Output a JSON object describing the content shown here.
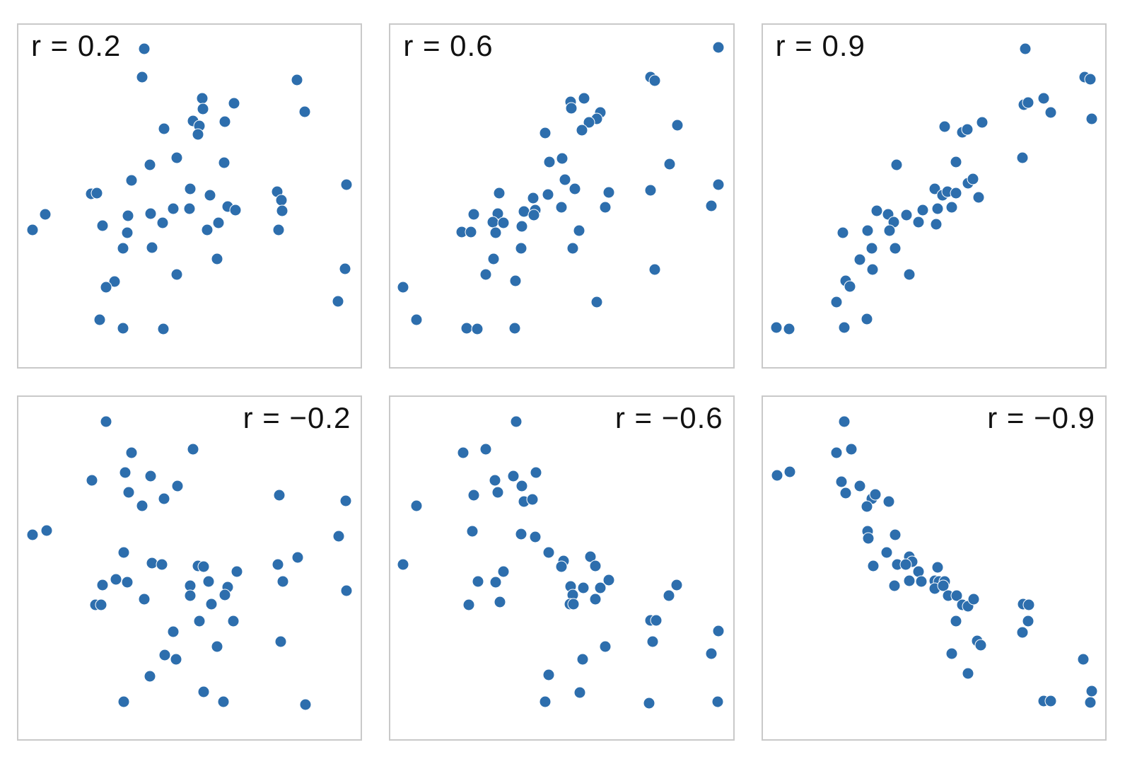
{
  "figure": {
    "description": "Six scatter plots illustrating different Pearson correlation coefficients"
  },
  "chart_data": {
    "type": "scatter",
    "layout": {
      "rows": 2,
      "cols": 3,
      "grid": false,
      "axes_visible": false,
      "tick_labels": false
    },
    "style": {
      "dot_color": "#2d6ead",
      "dot_edge_color": "#ffffff",
      "panel_border_color": "#c9c9c9",
      "label_color": "#111111",
      "background": "#ffffff"
    },
    "points_units": "percent of panel area; x from left edge, y from top edge",
    "panels": [
      {
        "label": "r = 0.2",
        "r": 0.2,
        "label_position": "top-left",
        "points": [
          [
            36.7,
            7.0
          ],
          [
            36.1,
            15.2
          ],
          [
            81.4,
            16.2
          ],
          [
            53.7,
            21.5
          ],
          [
            62.9,
            23.0
          ],
          [
            53.9,
            24.6
          ],
          [
            83.6,
            25.4
          ],
          [
            51.0,
            28.1
          ],
          [
            60.2,
            28.3
          ],
          [
            52.8,
            29.5
          ],
          [
            42.6,
            30.3
          ],
          [
            52.5,
            32.0
          ],
          [
            46.3,
            38.9
          ],
          [
            60.0,
            40.2
          ],
          [
            38.4,
            41.0
          ],
          [
            33.0,
            45.5
          ],
          [
            21.2,
            49.4
          ],
          [
            23.0,
            49.2
          ],
          [
            50.2,
            48.0
          ],
          [
            56.0,
            49.8
          ],
          [
            75.5,
            48.8
          ],
          [
            76.9,
            51.2
          ],
          [
            95.9,
            46.7
          ],
          [
            45.3,
            53.7
          ],
          [
            50.0,
            53.7
          ],
          [
            61.2,
            53.1
          ],
          [
            63.4,
            54.1
          ],
          [
            7.8,
            55.3
          ],
          [
            32.1,
            55.7
          ],
          [
            38.6,
            55.1
          ],
          [
            77.1,
            54.3
          ],
          [
            42.1,
            57.8
          ],
          [
            58.4,
            57.8
          ],
          [
            4.1,
            60.0
          ],
          [
            24.5,
            58.6
          ],
          [
            31.7,
            60.7
          ],
          [
            55.1,
            60.0
          ],
          [
            76.0,
            60.0
          ],
          [
            30.6,
            65.2
          ],
          [
            39.0,
            65.0
          ],
          [
            58.0,
            68.4
          ],
          [
            46.3,
            73.0
          ],
          [
            95.3,
            71.3
          ],
          [
            28.0,
            75.0
          ],
          [
            25.5,
            76.6
          ],
          [
            93.3,
            80.7
          ],
          [
            23.7,
            86.1
          ],
          [
            30.6,
            88.7
          ],
          [
            42.3,
            88.9
          ]
        ]
      },
      {
        "label": "r = 0.6",
        "r": 0.6,
        "label_position": "top-left",
        "points": [
          [
            95.7,
            6.6
          ],
          [
            76.0,
            15.2
          ],
          [
            77.2,
            16.4
          ],
          [
            52.6,
            22.5
          ],
          [
            52.8,
            24.4
          ],
          [
            56.5,
            21.5
          ],
          [
            61.2,
            25.6
          ],
          [
            60.2,
            27.5
          ],
          [
            57.9,
            28.5
          ],
          [
            55.9,
            30.7
          ],
          [
            45.2,
            31.6
          ],
          [
            83.8,
            29.3
          ],
          [
            46.4,
            40.0
          ],
          [
            50.1,
            39.1
          ],
          [
            81.5,
            40.8
          ],
          [
            50.9,
            45.3
          ],
          [
            53.8,
            48.0
          ],
          [
            31.8,
            49.2
          ],
          [
            41.6,
            50.6
          ],
          [
            46.0,
            49.6
          ],
          [
            63.7,
            49.0
          ],
          [
            76.0,
            48.4
          ],
          [
            95.7,
            46.7
          ],
          [
            62.6,
            53.3
          ],
          [
            49.9,
            53.3
          ],
          [
            93.6,
            52.9
          ],
          [
            39.0,
            54.5
          ],
          [
            42.3,
            54.1
          ],
          [
            41.8,
            55.5
          ],
          [
            24.2,
            55.3
          ],
          [
            31.4,
            55.1
          ],
          [
            29.9,
            57.6
          ],
          [
            32.9,
            57.8
          ],
          [
            30.6,
            60.7
          ],
          [
            38.4,
            58.8
          ],
          [
            20.8,
            60.5
          ],
          [
            23.4,
            60.5
          ],
          [
            55.0,
            60.2
          ],
          [
            38.2,
            65.2
          ],
          [
            53.3,
            65.2
          ],
          [
            30.1,
            68.4
          ],
          [
            77.2,
            71.5
          ],
          [
            27.9,
            73.0
          ],
          [
            36.4,
            74.8
          ],
          [
            3.7,
            76.6
          ],
          [
            60.2,
            80.9
          ],
          [
            7.6,
            86.1
          ],
          [
            22.3,
            88.7
          ],
          [
            25.3,
            88.9
          ],
          [
            36.2,
            88.7
          ]
        ]
      },
      {
        "label": "r = 0.9",
        "r": 0.9,
        "label_position": "top-left",
        "points": [
          [
            76.6,
            7.0
          ],
          [
            94.1,
            15.2
          ],
          [
            95.7,
            16.0
          ],
          [
            76.2,
            23.4
          ],
          [
            77.5,
            22.7
          ],
          [
            82.0,
            21.5
          ],
          [
            84.0,
            25.6
          ],
          [
            53.1,
            29.7
          ],
          [
            58.2,
            31.4
          ],
          [
            59.8,
            30.5
          ],
          [
            64.1,
            28.5
          ],
          [
            96.1,
            27.5
          ],
          [
            75.8,
            38.9
          ],
          [
            39.1,
            41.0
          ],
          [
            56.4,
            40.0
          ],
          [
            60.0,
            46.3
          ],
          [
            61.3,
            45.1
          ],
          [
            50.2,
            48.0
          ],
          [
            52.5,
            49.8
          ],
          [
            53.9,
            48.8
          ],
          [
            56.4,
            49.2
          ],
          [
            63.1,
            50.4
          ],
          [
            55.1,
            53.3
          ],
          [
            46.7,
            54.1
          ],
          [
            51.0,
            53.7
          ],
          [
            33.4,
            54.3
          ],
          [
            36.7,
            55.3
          ],
          [
            42.0,
            55.5
          ],
          [
            38.3,
            57.6
          ],
          [
            45.5,
            57.6
          ],
          [
            50.6,
            58.2
          ],
          [
            37.1,
            60.2
          ],
          [
            30.7,
            60.2
          ],
          [
            23.4,
            60.7
          ],
          [
            31.8,
            65.2
          ],
          [
            38.7,
            65.2
          ],
          [
            28.3,
            68.6
          ],
          [
            32.0,
            71.5
          ],
          [
            42.8,
            73.0
          ],
          [
            24.2,
            74.8
          ],
          [
            25.4,
            76.4
          ],
          [
            21.5,
            80.9
          ],
          [
            30.5,
            85.9
          ],
          [
            23.8,
            88.5
          ],
          [
            3.9,
            88.5
          ],
          [
            7.8,
            88.9
          ]
        ]
      },
      {
        "label": "r = −0.2",
        "r": -0.2,
        "label_position": "top-right",
        "points": [
          [
            25.7,
            7.2
          ],
          [
            33.1,
            16.4
          ],
          [
            51.1,
            15.2
          ],
          [
            31.1,
            22.1
          ],
          [
            38.7,
            23.2
          ],
          [
            21.5,
            24.4
          ],
          [
            46.4,
            26.0
          ],
          [
            32.3,
            27.9
          ],
          [
            42.5,
            29.7
          ],
          [
            36.2,
            31.8
          ],
          [
            76.1,
            28.7
          ],
          [
            95.5,
            30.3
          ],
          [
            4.1,
            40.2
          ],
          [
            8.2,
            39.1
          ],
          [
            93.6,
            40.8
          ],
          [
            30.7,
            45.5
          ],
          [
            39.1,
            48.6
          ],
          [
            42.0,
            49.0
          ],
          [
            52.4,
            49.4
          ],
          [
            54.0,
            49.6
          ],
          [
            75.7,
            49.0
          ],
          [
            81.6,
            46.9
          ],
          [
            63.8,
            51.0
          ],
          [
            24.6,
            54.9
          ],
          [
            28.5,
            53.3
          ],
          [
            31.7,
            54.1
          ],
          [
            77.3,
            53.9
          ],
          [
            95.7,
            56.6
          ],
          [
            50.1,
            55.1
          ],
          [
            55.5,
            53.9
          ],
          [
            61.1,
            55.5
          ],
          [
            50.1,
            58.0
          ],
          [
            60.3,
            57.8
          ],
          [
            36.8,
            59.0
          ],
          [
            56.4,
            60.5
          ],
          [
            22.5,
            60.7
          ],
          [
            24.1,
            60.7
          ],
          [
            52.9,
            65.4
          ],
          [
            62.8,
            65.4
          ],
          [
            45.2,
            68.6
          ],
          [
            76.6,
            71.5
          ],
          [
            58.1,
            73.0
          ],
          [
            42.7,
            75.4
          ],
          [
            46.0,
            76.6
          ],
          [
            38.5,
            81.6
          ],
          [
            54.0,
            86.1
          ],
          [
            30.7,
            89.1
          ],
          [
            59.9,
            89.1
          ],
          [
            83.8,
            89.8
          ]
        ]
      },
      {
        "label": "r = −0.6",
        "r": -0.6,
        "label_position": "top-right",
        "points": [
          [
            36.6,
            7.2
          ],
          [
            21.2,
            16.4
          ],
          [
            27.9,
            15.2
          ],
          [
            42.5,
            22.1
          ],
          [
            35.9,
            23.2
          ],
          [
            30.4,
            24.4
          ],
          [
            38.4,
            26.0
          ],
          [
            31.4,
            27.9
          ],
          [
            24.2,
            28.7
          ],
          [
            39.0,
            30.5
          ],
          [
            41.4,
            29.9
          ],
          [
            7.6,
            31.8
          ],
          [
            23.8,
            39.3
          ],
          [
            38.2,
            40.0
          ],
          [
            42.3,
            41.0
          ],
          [
            46.2,
            45.5
          ],
          [
            50.5,
            48.0
          ],
          [
            49.9,
            49.6
          ],
          [
            3.7,
            49.0
          ],
          [
            58.3,
            46.7
          ],
          [
            59.8,
            49.4
          ],
          [
            32.9,
            51.0
          ],
          [
            25.6,
            53.9
          ],
          [
            30.6,
            54.1
          ],
          [
            63.7,
            53.5
          ],
          [
            52.6,
            55.3
          ],
          [
            56.3,
            55.7
          ],
          [
            61.3,
            55.7
          ],
          [
            53.3,
            57.8
          ],
          [
            59.8,
            59.0
          ],
          [
            52.4,
            60.5
          ],
          [
            53.5,
            60.5
          ],
          [
            22.8,
            60.7
          ],
          [
            32.0,
            60.0
          ],
          [
            83.6,
            54.9
          ],
          [
            81.3,
            58.0
          ],
          [
            76.0,
            65.2
          ],
          [
            77.6,
            65.2
          ],
          [
            95.7,
            68.4
          ],
          [
            76.6,
            71.5
          ],
          [
            93.6,
            75.0
          ],
          [
            62.8,
            73.0
          ],
          [
            56.1,
            76.6
          ],
          [
            46.2,
            81.1
          ],
          [
            55.2,
            86.3
          ],
          [
            45.2,
            89.1
          ],
          [
            75.6,
            89.5
          ],
          [
            95.5,
            89.1
          ]
        ]
      },
      {
        "label": "r = −0.9",
        "r": -0.9,
        "label_position": "top-right",
        "points": [
          [
            23.8,
            7.2
          ],
          [
            21.5,
            16.4
          ],
          [
            25.8,
            15.2
          ],
          [
            4.1,
            23.0
          ],
          [
            8.0,
            21.9
          ],
          [
            23.0,
            24.8
          ],
          [
            28.3,
            26.0
          ],
          [
            24.2,
            28.1
          ],
          [
            31.8,
            29.7
          ],
          [
            32.8,
            28.5
          ],
          [
            30.5,
            32.0
          ],
          [
            36.9,
            30.5
          ],
          [
            30.7,
            39.3
          ],
          [
            30.9,
            41.4
          ],
          [
            38.7,
            40.2
          ],
          [
            36.3,
            45.5
          ],
          [
            32.2,
            49.4
          ],
          [
            42.8,
            46.7
          ],
          [
            43.6,
            48.2
          ],
          [
            39.3,
            49.0
          ],
          [
            41.8,
            49.0
          ],
          [
            45.5,
            51.0
          ],
          [
            51.0,
            49.8
          ],
          [
            42.8,
            53.7
          ],
          [
            38.5,
            55.1
          ],
          [
            46.3,
            53.9
          ],
          [
            50.2,
            53.7
          ],
          [
            51.4,
            53.9
          ],
          [
            53.1,
            53.9
          ],
          [
            50.2,
            55.9
          ],
          [
            52.7,
            55.1
          ],
          [
            54.1,
            58.0
          ],
          [
            56.6,
            58.0
          ],
          [
            58.2,
            60.7
          ],
          [
            60.0,
            61.1
          ],
          [
            61.5,
            59.0
          ],
          [
            56.4,
            65.4
          ],
          [
            76.0,
            60.5
          ],
          [
            77.7,
            60.7
          ],
          [
            77.5,
            65.4
          ],
          [
            75.8,
            68.9
          ],
          [
            62.7,
            71.3
          ],
          [
            63.7,
            72.5
          ],
          [
            55.3,
            75.0
          ],
          [
            60.0,
            80.7
          ],
          [
            93.6,
            76.6
          ],
          [
            96.1,
            85.9
          ],
          [
            82.0,
            88.9
          ],
          [
            84.0,
            88.9
          ],
          [
            95.7,
            89.3
          ]
        ]
      }
    ]
  }
}
